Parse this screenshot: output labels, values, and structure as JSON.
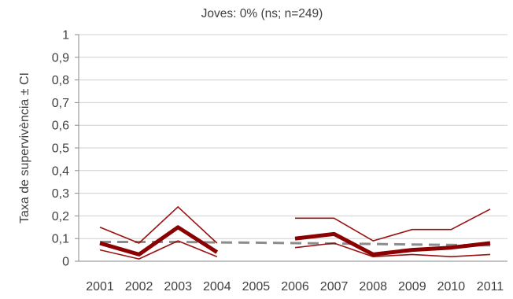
{
  "chart_data": {
    "type": "line",
    "title": "Joves: 0% (ns; n=249)",
    "xlabel": "",
    "ylabel": "Taxa de supervivència ± CI",
    "ylim": [
      0,
      1
    ],
    "y_ticks": [
      "0",
      "0,1",
      "0,2",
      "0,3",
      "0,4",
      "0,5",
      "0,6",
      "0,7",
      "0,8",
      "0,9",
      "1"
    ],
    "categories": [
      "2001",
      "2002",
      "2003",
      "2004",
      "2005",
      "2006",
      "2007",
      "2008",
      "2009",
      "2010",
      "2011"
    ],
    "grid": true,
    "legend": "none",
    "series": [
      {
        "role": "estimate",
        "color": "#8b0000",
        "style": "solid-thick",
        "values": [
          0.08,
          0.03,
          0.15,
          0.04,
          null,
          0.1,
          0.12,
          0.03,
          0.05,
          0.06,
          0.08
        ]
      },
      {
        "role": "upper-ci",
        "color": "#9b1010",
        "style": "solid-thin",
        "values": [
          0.15,
          0.08,
          0.24,
          0.08,
          null,
          0.19,
          0.19,
          0.09,
          0.14,
          0.14,
          0.23
        ]
      },
      {
        "role": "lower-ci",
        "color": "#9b1010",
        "style": "solid-thin",
        "values": [
          0.05,
          0.01,
          0.09,
          0.02,
          null,
          0.06,
          0.08,
          0.02,
          0.03,
          0.02,
          0.03
        ]
      },
      {
        "role": "mean",
        "color": "#8c8c8c",
        "style": "dashed",
        "values": [
          0.085,
          0.085,
          0.085,
          0.083,
          0.082,
          0.08,
          0.078,
          0.076,
          0.074,
          0.072,
          0.07
        ]
      }
    ]
  }
}
